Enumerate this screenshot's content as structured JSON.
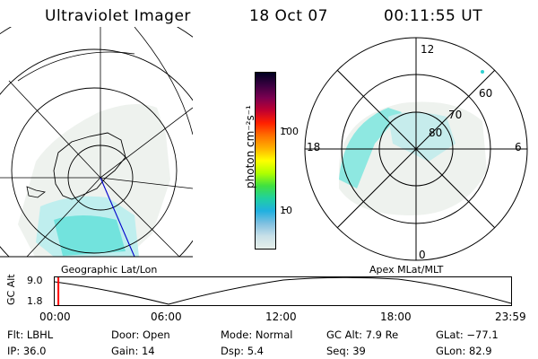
{
  "header": {
    "title": "Ultraviolet Imager",
    "date": "18 Oct 07",
    "time": "00:11:55 UT"
  },
  "left_panel": {
    "label": "Geographic Lat/Lon"
  },
  "right_panel": {
    "label": "Apex MLat/MLT",
    "mlt_labels": {
      "top": "12",
      "left": "18",
      "right": "6",
      "bottom": "0"
    },
    "lat_labels": [
      "60",
      "70",
      "80"
    ]
  },
  "colorbar": {
    "unit_label": "photon cm⁻²s⁻¹",
    "ticks": [
      "100",
      "10"
    ],
    "colors": [
      "#000020",
      "#3a0040",
      "#7a0050",
      "#c00030",
      "#ff2000",
      "#ff7000",
      "#ffb000",
      "#ffff00",
      "#b0ff00",
      "#40e040",
      "#20d0a0",
      "#20b0e0",
      "#80c0e0",
      "#c8e0e8",
      "#e6eeea"
    ]
  },
  "timeline": {
    "axis_label": "GC Alt",
    "y_ticks": [
      "9.0",
      "1.8"
    ],
    "x_ticks": [
      "00:00",
      "06:00",
      "12:00",
      "18:00",
      "23:59"
    ],
    "current_marker_fraction": 0.008,
    "marker_color": "#ff0000"
  },
  "info": {
    "filter_label": "Flt:",
    "filter_value": "LBHL",
    "door_label": "Door:",
    "door_value": "Open",
    "mode_label": "Mode:",
    "mode_value": "Normal",
    "gcalt_label": "GC Alt:",
    "gcalt_value": "7.9 Re",
    "glat_label": "GLat:",
    "glat_value": "−77.1",
    "ip_label": "IP:",
    "ip_value": "36.0",
    "gain_label": "Gain:",
    "gain_value": "14",
    "dsp_label": "Dsp:",
    "dsp_value": "5.4",
    "seq_label": "Seq:",
    "seq_value": "39",
    "glon_label": "GLon:",
    "glon_value": "82.9"
  }
}
